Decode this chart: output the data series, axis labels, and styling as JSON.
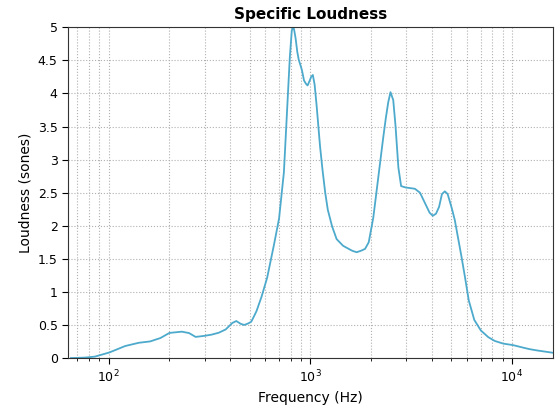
{
  "title": "Specific Loudness",
  "xlabel": "Frequency (Hz)",
  "ylabel": "Loudness (sones)",
  "xlim": [
    63,
    16000
  ],
  "ylim": [
    0,
    5
  ],
  "yticks": [
    0,
    0.5,
    1.0,
    1.5,
    2.0,
    2.5,
    3.0,
    3.5,
    4.0,
    4.5,
    5.0
  ],
  "ytick_labels": [
    "0",
    "0.5",
    "1",
    "1.5",
    "2",
    "2.5",
    "3",
    "3.5",
    "4",
    "4.5",
    "5"
  ],
  "line_color": "#4DAACC",
  "line_width": 1.3,
  "background_color": "#ffffff",
  "grid_color": "#b0b0b0",
  "title_fontsize": 11,
  "label_fontsize": 10,
  "tick_fontsize": 9,
  "keypoints": [
    [
      65,
      0.0
    ],
    [
      75,
      0.005
    ],
    [
      85,
      0.02
    ],
    [
      100,
      0.08
    ],
    [
      120,
      0.18
    ],
    [
      140,
      0.23
    ],
    [
      160,
      0.25
    ],
    [
      180,
      0.3
    ],
    [
      200,
      0.38
    ],
    [
      230,
      0.4
    ],
    [
      250,
      0.38
    ],
    [
      270,
      0.32
    ],
    [
      290,
      0.33
    ],
    [
      320,
      0.35
    ],
    [
      350,
      0.38
    ],
    [
      380,
      0.43
    ],
    [
      410,
      0.53
    ],
    [
      430,
      0.56
    ],
    [
      450,
      0.52
    ],
    [
      470,
      0.5
    ],
    [
      490,
      0.52
    ],
    [
      510,
      0.55
    ],
    [
      540,
      0.7
    ],
    [
      570,
      0.9
    ],
    [
      610,
      1.2
    ],
    [
      650,
      1.6
    ],
    [
      700,
      2.1
    ],
    [
      740,
      2.8
    ],
    [
      770,
      3.8
    ],
    [
      790,
      4.5
    ],
    [
      810,
      4.95
    ],
    [
      820,
      5.0
    ],
    [
      830,
      4.98
    ],
    [
      845,
      4.85
    ],
    [
      860,
      4.65
    ],
    [
      875,
      4.52
    ],
    [
      890,
      4.45
    ],
    [
      910,
      4.35
    ],
    [
      930,
      4.2
    ],
    [
      950,
      4.15
    ],
    [
      970,
      4.12
    ],
    [
      990,
      4.18
    ],
    [
      1010,
      4.25
    ],
    [
      1030,
      4.28
    ],
    [
      1050,
      4.15
    ],
    [
      1070,
      3.9
    ],
    [
      1090,
      3.6
    ],
    [
      1110,
      3.3
    ],
    [
      1140,
      2.95
    ],
    [
      1180,
      2.55
    ],
    [
      1220,
      2.25
    ],
    [
      1280,
      2.0
    ],
    [
      1350,
      1.8
    ],
    [
      1450,
      1.7
    ],
    [
      1550,
      1.65
    ],
    [
      1620,
      1.62
    ],
    [
      1700,
      1.6
    ],
    [
      1780,
      1.62
    ],
    [
      1870,
      1.65
    ],
    [
      1950,
      1.75
    ],
    [
      2050,
      2.1
    ],
    [
      2150,
      2.6
    ],
    [
      2250,
      3.1
    ],
    [
      2350,
      3.55
    ],
    [
      2430,
      3.85
    ],
    [
      2500,
      4.02
    ],
    [
      2580,
      3.9
    ],
    [
      2650,
      3.5
    ],
    [
      2730,
      2.9
    ],
    [
      2820,
      2.6
    ],
    [
      2950,
      2.58
    ],
    [
      3100,
      2.57
    ],
    [
      3300,
      2.56
    ],
    [
      3500,
      2.5
    ],
    [
      3700,
      2.35
    ],
    [
      3900,
      2.2
    ],
    [
      4050,
      2.15
    ],
    [
      4200,
      2.18
    ],
    [
      4350,
      2.28
    ],
    [
      4500,
      2.48
    ],
    [
      4650,
      2.52
    ],
    [
      4800,
      2.48
    ],
    [
      5000,
      2.3
    ],
    [
      5200,
      2.1
    ],
    [
      5500,
      1.7
    ],
    [
      5800,
      1.3
    ],
    [
      6100,
      0.88
    ],
    [
      6500,
      0.58
    ],
    [
      7000,
      0.42
    ],
    [
      7600,
      0.32
    ],
    [
      8200,
      0.26
    ],
    [
      9000,
      0.22
    ],
    [
      10000,
      0.2
    ],
    [
      11000,
      0.17
    ],
    [
      12000,
      0.14
    ],
    [
      13000,
      0.12
    ],
    [
      14500,
      0.1
    ],
    [
      16000,
      0.08
    ]
  ]
}
